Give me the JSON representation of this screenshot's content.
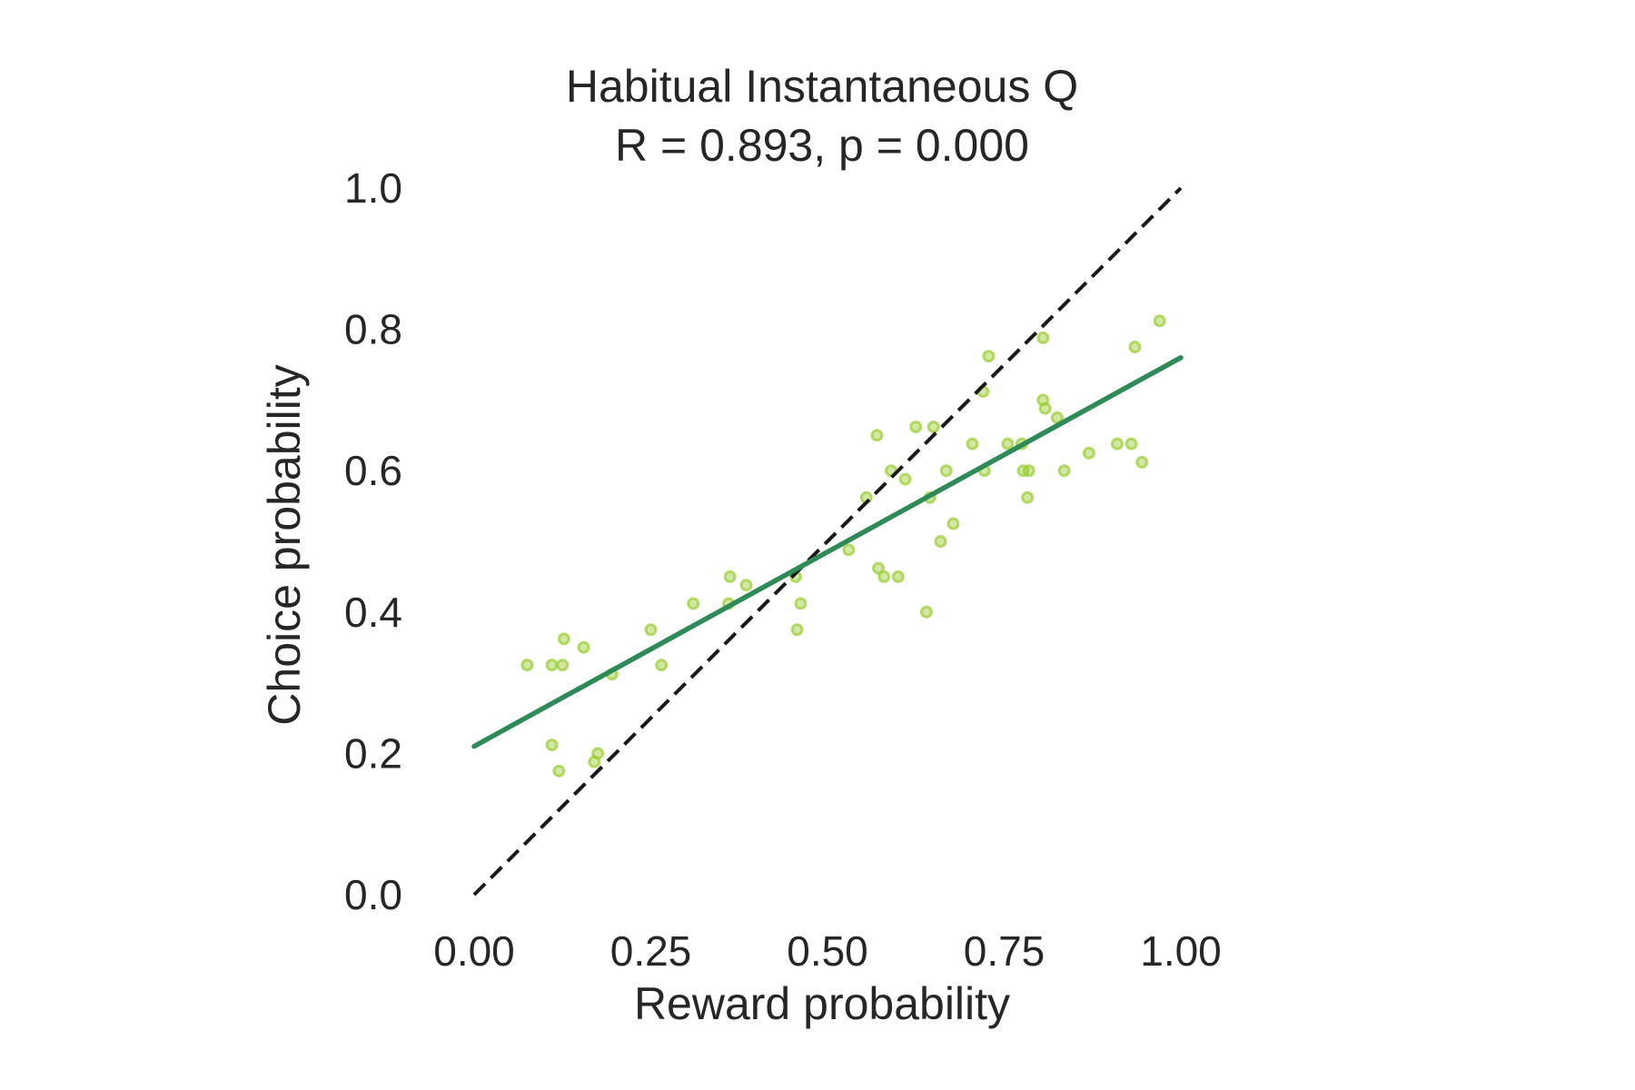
{
  "chart_data": {
    "type": "scatter",
    "title": "Habitual Instantaneous Q",
    "subtitle": "R = 0.893, p = 0.000",
    "xlabel": "Reward probability",
    "ylabel": "Choice probability",
    "xlim": [
      0,
      1
    ],
    "ylim": [
      0,
      1
    ],
    "xticks": [
      "0.00",
      "0.25",
      "0.50",
      "0.75",
      "1.00"
    ],
    "xtick_values": [
      0,
      0.25,
      0.5,
      0.75,
      1.0
    ],
    "yticks": [
      "0.0",
      "0.2",
      "0.4",
      "0.6",
      "0.8",
      "1.0"
    ],
    "ytick_values": [
      0,
      0.2,
      0.4,
      0.6,
      0.8,
      1.0
    ],
    "grid": false,
    "colors": {
      "points": "#9ACD32",
      "fit_line": "#2E8B57",
      "identity_line": "#1a1a1a",
      "text": "#262626"
    },
    "fit_line": {
      "x": [
        0,
        1
      ],
      "y": [
        0.21,
        0.76
      ]
    },
    "identity_line": {
      "x": [
        0,
        1
      ],
      "y": [
        0,
        1
      ],
      "style": "dashed"
    },
    "points": [
      [
        0.075,
        0.325
      ],
      [
        0.11,
        0.325
      ],
      [
        0.125,
        0.325
      ],
      [
        0.127,
        0.362
      ],
      [
        0.155,
        0.35
      ],
      [
        0.11,
        0.212
      ],
      [
        0.12,
        0.175
      ],
      [
        0.17,
        0.188
      ],
      [
        0.175,
        0.2
      ],
      [
        0.195,
        0.312
      ],
      [
        0.25,
        0.375
      ],
      [
        0.265,
        0.325
      ],
      [
        0.31,
        0.412
      ],
      [
        0.36,
        0.412
      ],
      [
        0.362,
        0.45
      ],
      [
        0.385,
        0.438
      ],
      [
        0.455,
        0.45
      ],
      [
        0.457,
        0.375
      ],
      [
        0.462,
        0.412
      ],
      [
        0.53,
        0.488
      ],
      [
        0.555,
        0.562
      ],
      [
        0.57,
        0.65
      ],
      [
        0.572,
        0.462
      ],
      [
        0.58,
        0.45
      ],
      [
        0.59,
        0.6
      ],
      [
        0.6,
        0.45
      ],
      [
        0.61,
        0.588
      ],
      [
        0.625,
        0.662
      ],
      [
        0.64,
        0.4
      ],
      [
        0.645,
        0.562
      ],
      [
        0.65,
        0.662
      ],
      [
        0.66,
        0.5
      ],
      [
        0.668,
        0.6
      ],
      [
        0.678,
        0.525
      ],
      [
        0.705,
        0.638
      ],
      [
        0.72,
        0.712
      ],
      [
        0.722,
        0.6
      ],
      [
        0.728,
        0.762
      ],
      [
        0.755,
        0.638
      ],
      [
        0.775,
        0.638
      ],
      [
        0.777,
        0.6
      ],
      [
        0.785,
        0.6
      ],
      [
        0.783,
        0.562
      ],
      [
        0.805,
        0.7
      ],
      [
        0.808,
        0.688
      ],
      [
        0.805,
        0.788
      ],
      [
        0.825,
        0.675
      ],
      [
        0.835,
        0.6
      ],
      [
        0.87,
        0.625
      ],
      [
        0.91,
        0.638
      ],
      [
        0.93,
        0.638
      ],
      [
        0.935,
        0.775
      ],
      [
        0.945,
        0.612
      ],
      [
        0.97,
        0.812
      ]
    ]
  }
}
